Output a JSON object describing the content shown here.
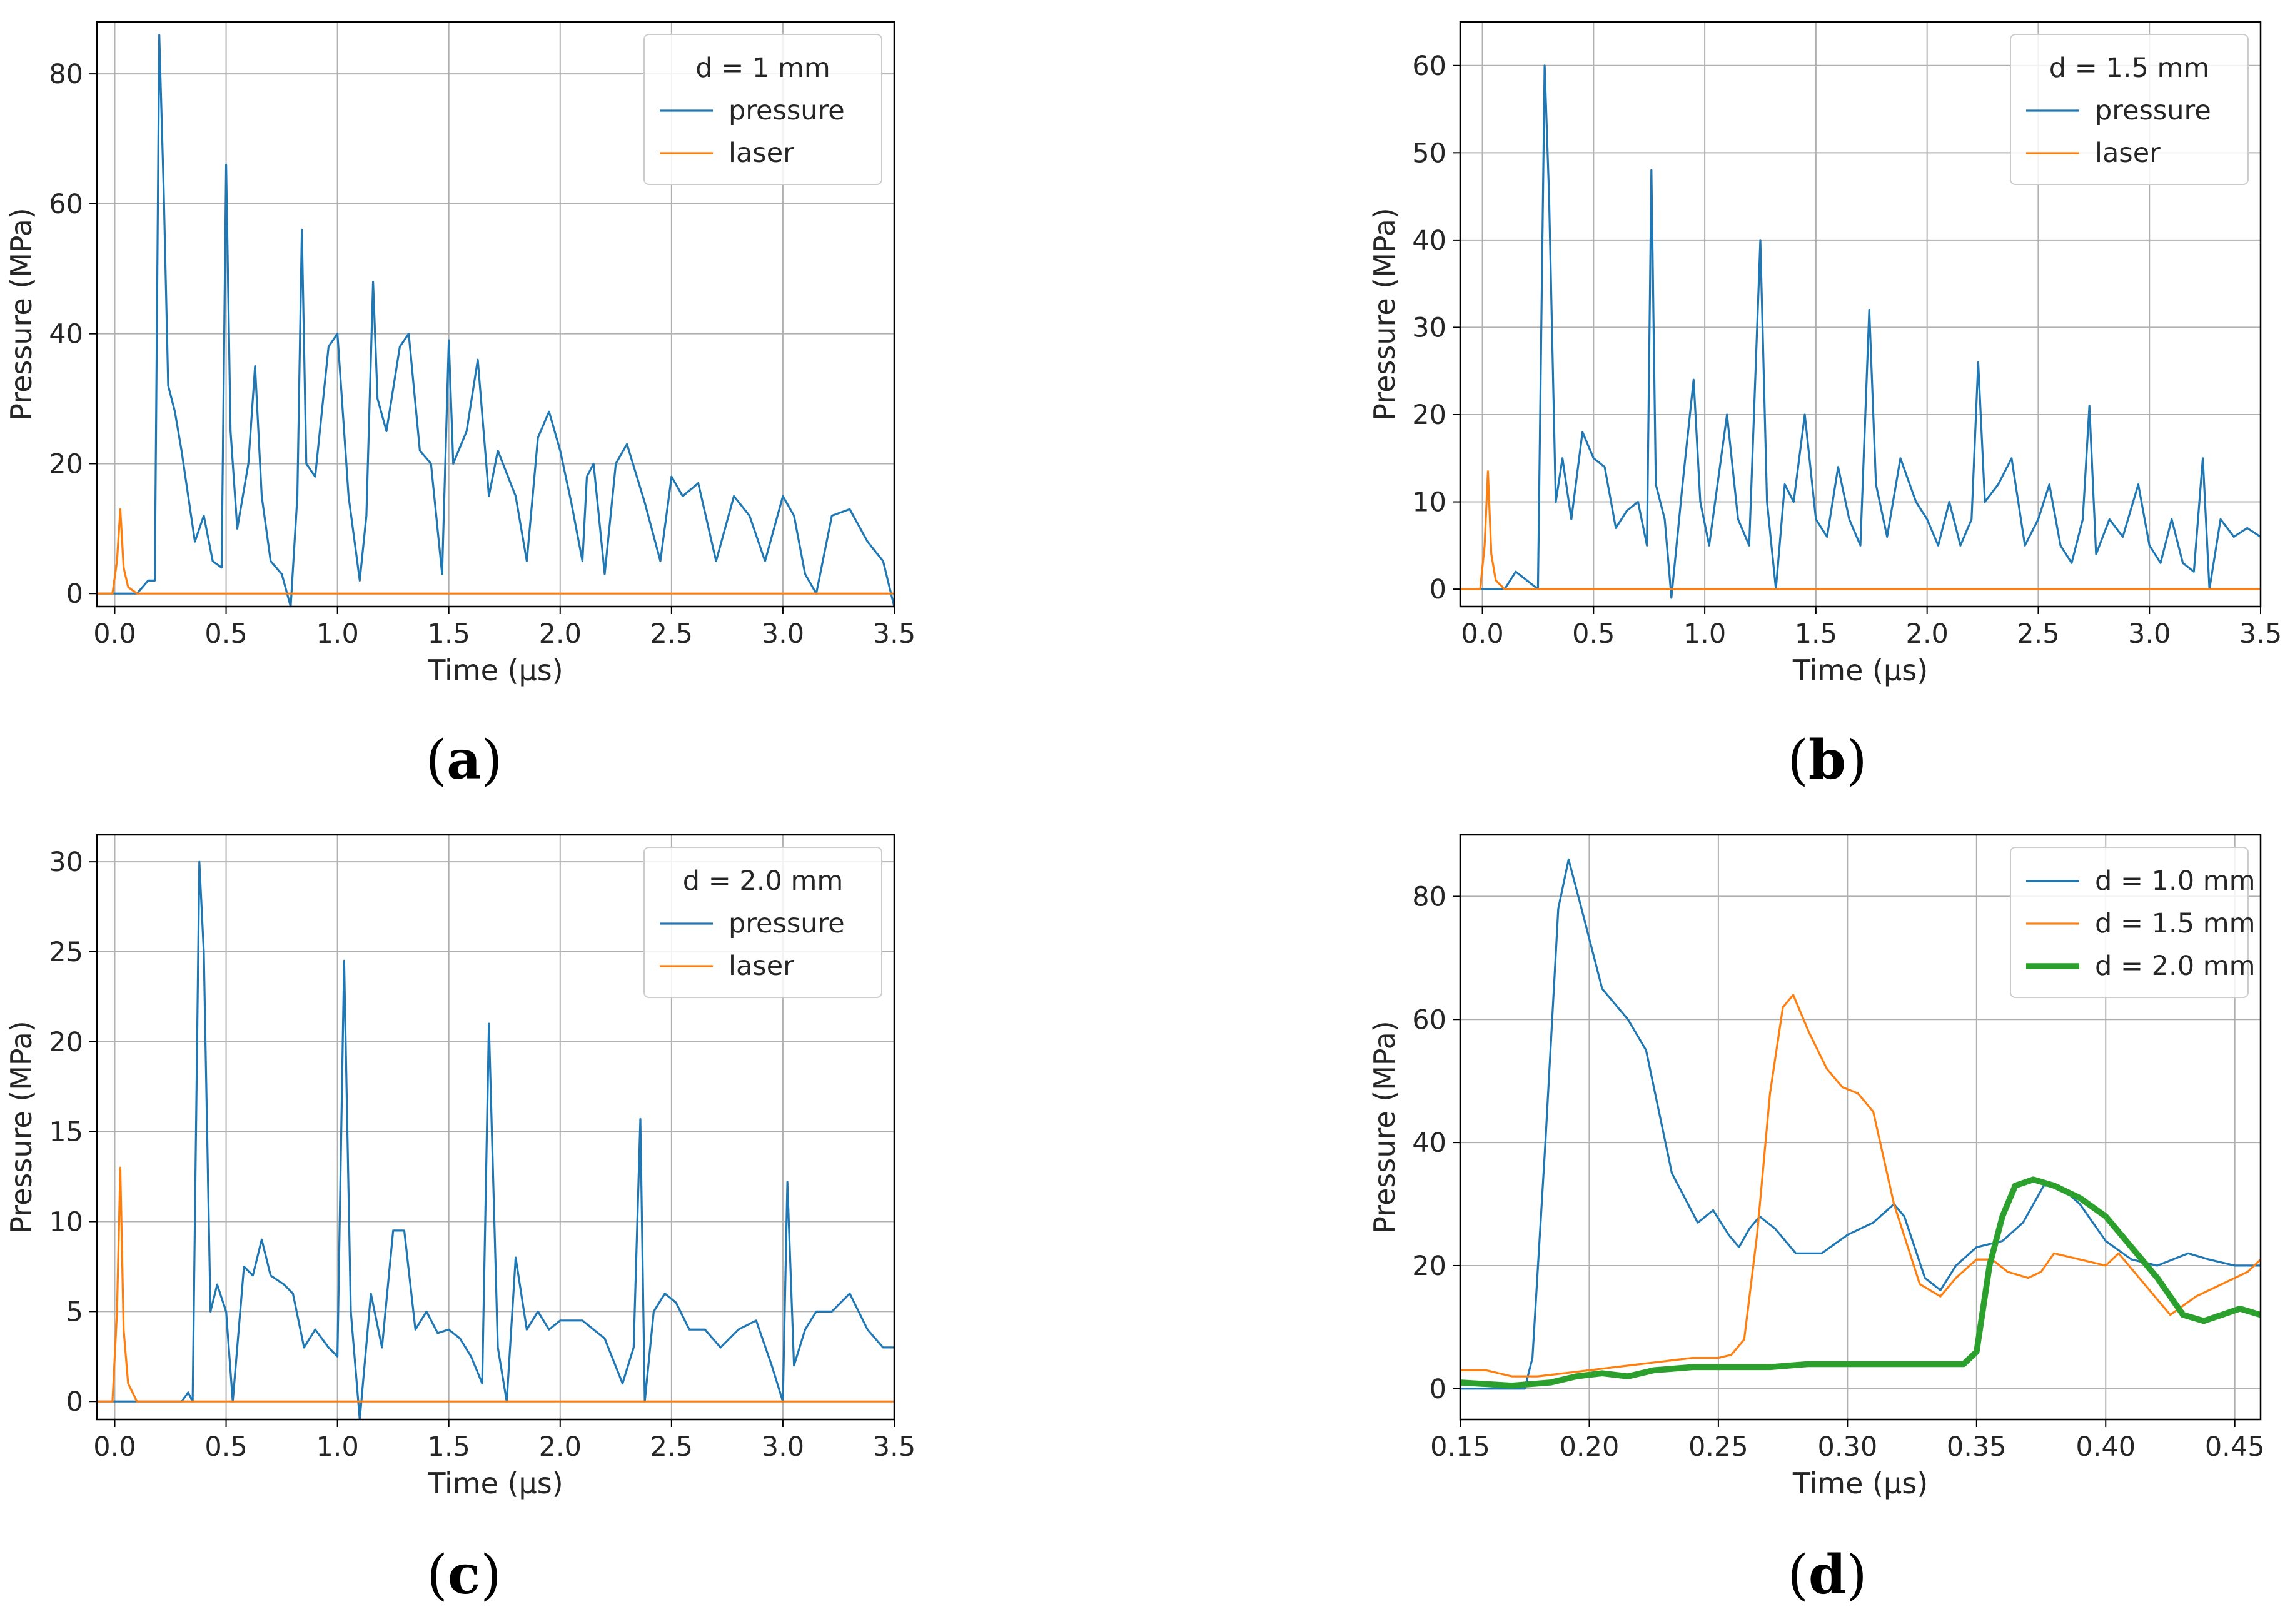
{
  "figure": {
    "panels": [
      {
        "key": "a",
        "label_open": "(",
        "label_letter": "a",
        "label_close": ")"
      },
      {
        "key": "b",
        "label_open": "(",
        "label_letter": "b",
        "label_close": ")"
      },
      {
        "key": "c",
        "label_open": "(",
        "label_letter": "c",
        "label_close": ")"
      },
      {
        "key": "d",
        "label_open": "(",
        "label_letter": "d",
        "label_close": ")"
      }
    ]
  },
  "colors": {
    "pressure": "#1f77b4",
    "laser": "#ff7f0e",
    "green": "#2ca02c"
  },
  "chart_data": [
    {
      "id": "a",
      "type": "line",
      "xlabel": "Time (μs)",
      "ylabel": "Pressure (MPa)",
      "xlim": [
        -0.08,
        3.5
      ],
      "ylim": [
        -2,
        88
      ],
      "xticks": [
        0.0,
        0.5,
        1.0,
        1.5,
        2.0,
        2.5,
        3.0,
        3.5
      ],
      "xtick_labels": [
        "0.0",
        "0.5",
        "1.0",
        "1.5",
        "2.0",
        "2.5",
        "3.0",
        "3.5"
      ],
      "yticks": [
        0,
        20,
        40,
        60,
        80
      ],
      "ytick_labels": [
        "0",
        "20",
        "40",
        "60",
        "80"
      ],
      "grid": true,
      "legend": {
        "position": "top-right",
        "title": "d = 1 mm"
      },
      "series": [
        {
          "name": "pressure",
          "color": "#1f77b4",
          "x": [
            -0.08,
            0.1,
            0.15,
            0.18,
            0.2,
            0.22,
            0.24,
            0.27,
            0.3,
            0.33,
            0.36,
            0.4,
            0.44,
            0.48,
            0.5,
            0.52,
            0.55,
            0.6,
            0.63,
            0.66,
            0.7,
            0.75,
            0.79,
            0.82,
            0.84,
            0.86,
            0.9,
            0.96,
            1.0,
            1.05,
            1.1,
            1.13,
            1.16,
            1.18,
            1.22,
            1.28,
            1.32,
            1.37,
            1.42,
            1.47,
            1.5,
            1.52,
            1.58,
            1.63,
            1.68,
            1.72,
            1.8,
            1.85,
            1.9,
            1.95,
            2.0,
            2.05,
            2.1,
            2.12,
            2.15,
            2.2,
            2.25,
            2.3,
            2.38,
            2.45,
            2.5,
            2.55,
            2.62,
            2.7,
            2.78,
            2.85,
            2.92,
            3.0,
            3.05,
            3.1,
            3.15,
            3.22,
            3.3,
            3.38,
            3.45,
            3.5
          ],
          "y": [
            0,
            0,
            2,
            2,
            86,
            62,
            32,
            28,
            22,
            15,
            8,
            12,
            5,
            4,
            66,
            25,
            10,
            20,
            35,
            15,
            5,
            3,
            -2,
            15,
            56,
            20,
            18,
            38,
            40,
            15,
            2,
            12,
            48,
            30,
            25,
            38,
            40,
            22,
            20,
            3,
            39,
            20,
            25,
            36,
            15,
            22,
            15,
            5,
            24,
            28,
            22,
            14,
            5,
            18,
            20,
            3,
            20,
            23,
            14,
            5,
            18,
            15,
            17,
            5,
            15,
            12,
            5,
            15,
            12,
            3,
            0,
            12,
            13,
            8,
            5,
            -2
          ]
        },
        {
          "name": "laser",
          "color": "#ff7f0e",
          "x": [
            -0.08,
            -0.01,
            0.01,
            0.025,
            0.04,
            0.06,
            0.1,
            3.5
          ],
          "y": [
            0,
            0,
            5,
            13,
            4,
            1,
            0,
            0
          ]
        }
      ]
    },
    {
      "id": "b",
      "type": "line",
      "xlabel": "Time (μs)",
      "ylabel": "Pressure (MPa)",
      "xlim": [
        -0.1,
        3.5
      ],
      "ylim": [
        -2,
        65
      ],
      "xticks": [
        0.0,
        0.5,
        1.0,
        1.5,
        2.0,
        2.5,
        3.0,
        3.5
      ],
      "xtick_labels": [
        "0.0",
        "0.5",
        "1.0",
        "1.5",
        "2.0",
        "2.5",
        "3.0",
        "3.5"
      ],
      "yticks": [
        0,
        10,
        20,
        30,
        40,
        50,
        60
      ],
      "ytick_labels": [
        "0",
        "10",
        "20",
        "30",
        "40",
        "50",
        "60"
      ],
      "grid": true,
      "legend": {
        "position": "top-right",
        "title": "d = 1.5 mm"
      },
      "series": [
        {
          "name": "pressure",
          "color": "#1f77b4",
          "x": [
            -0.1,
            0.1,
            0.15,
            0.2,
            0.25,
            0.28,
            0.3,
            0.33,
            0.36,
            0.4,
            0.45,
            0.5,
            0.55,
            0.6,
            0.65,
            0.7,
            0.74,
            0.76,
            0.78,
            0.82,
            0.85,
            0.9,
            0.95,
            0.98,
            1.02,
            1.1,
            1.15,
            1.2,
            1.25,
            1.28,
            1.32,
            1.36,
            1.4,
            1.45,
            1.5,
            1.55,
            1.6,
            1.65,
            1.7,
            1.74,
            1.77,
            1.82,
            1.88,
            1.95,
            2.0,
            2.05,
            2.1,
            2.15,
            2.2,
            2.23,
            2.26,
            2.32,
            2.38,
            2.44,
            2.5,
            2.55,
            2.6,
            2.65,
            2.7,
            2.73,
            2.76,
            2.82,
            2.88,
            2.95,
            3.0,
            3.05,
            3.1,
            3.15,
            3.2,
            3.24,
            3.27,
            3.32,
            3.38,
            3.44,
            3.5
          ],
          "y": [
            0,
            0,
            2,
            1,
            0,
            60,
            45,
            10,
            15,
            8,
            18,
            15,
            14,
            7,
            9,
            10,
            5,
            48,
            12,
            8,
            -1,
            12,
            24,
            10,
            5,
            20,
            8,
            5,
            40,
            10,
            0,
            12,
            10,
            20,
            8,
            6,
            14,
            8,
            5,
            32,
            12,
            6,
            15,
            10,
            8,
            5,
            10,
            5,
            8,
            26,
            10,
            12,
            15,
            5,
            8,
            12,
            5,
            3,
            8,
            21,
            4,
            8,
            6,
            12,
            5,
            3,
            8,
            3,
            2,
            15,
            0,
            8,
            6,
            7,
            6
          ]
        },
        {
          "name": "laser",
          "color": "#ff7f0e",
          "x": [
            -0.1,
            -0.01,
            0.01,
            0.025,
            0.04,
            0.06,
            0.1,
            3.5
          ],
          "y": [
            0,
            0,
            5,
            13.5,
            4,
            1,
            0,
            0
          ]
        }
      ]
    },
    {
      "id": "c",
      "type": "line",
      "xlabel": "Time (μs)",
      "ylabel": "Pressure (MPa)",
      "xlim": [
        -0.08,
        3.5
      ],
      "ylim": [
        -1,
        31.5
      ],
      "xticks": [
        0.0,
        0.5,
        1.0,
        1.5,
        2.0,
        2.5,
        3.0,
        3.5
      ],
      "xtick_labels": [
        "0.0",
        "0.5",
        "1.0",
        "1.5",
        "2.0",
        "2.5",
        "3.0",
        "3.5"
      ],
      "yticks": [
        0,
        5,
        10,
        15,
        20,
        25,
        30
      ],
      "ytick_labels": [
        "0",
        "5",
        "10",
        "15",
        "20",
        "25",
        "30"
      ],
      "grid": true,
      "legend": {
        "position": "top-right",
        "title": "d = 2.0 mm"
      },
      "series": [
        {
          "name": "pressure",
          "color": "#1f77b4",
          "x": [
            -0.08,
            0.2,
            0.3,
            0.33,
            0.35,
            0.38,
            0.4,
            0.43,
            0.46,
            0.5,
            0.53,
            0.58,
            0.62,
            0.66,
            0.7,
            0.76,
            0.8,
            0.85,
            0.9,
            0.96,
            1.0,
            1.03,
            1.06,
            1.1,
            1.15,
            1.2,
            1.25,
            1.3,
            1.35,
            1.4,
            1.45,
            1.5,
            1.55,
            1.6,
            1.65,
            1.68,
            1.72,
            1.76,
            1.8,
            1.85,
            1.9,
            1.95,
            2.0,
            2.1,
            2.2,
            2.28,
            2.33,
            2.36,
            2.38,
            2.42,
            2.47,
            2.52,
            2.58,
            2.65,
            2.72,
            2.8,
            2.88,
            2.95,
            3.0,
            3.02,
            3.05,
            3.1,
            3.15,
            3.22,
            3.3,
            3.38,
            3.45,
            3.5
          ],
          "y": [
            0,
            0,
            0,
            0.5,
            0,
            30,
            25,
            5,
            6.5,
            5,
            0,
            7.5,
            7,
            9,
            7,
            6.5,
            6,
            3,
            4,
            3,
            2.5,
            24.5,
            5,
            -1,
            6,
            3,
            9.5,
            9.5,
            4,
            5,
            3.8,
            4,
            3.5,
            2.5,
            1,
            21,
            3,
            0,
            8,
            4,
            5,
            4,
            4.5,
            4.5,
            3.5,
            1,
            3,
            15.7,
            0,
            5,
            6,
            5.5,
            4,
            4,
            3,
            4,
            4.5,
            2,
            0,
            12.2,
            2,
            4,
            5,
            5,
            6,
            4,
            3,
            3
          ]
        },
        {
          "name": "laser",
          "color": "#ff7f0e",
          "x": [
            -0.08,
            -0.01,
            0.01,
            0.025,
            0.04,
            0.06,
            0.1,
            3.5
          ],
          "y": [
            0,
            0,
            5,
            13,
            4,
            1,
            0,
            0
          ]
        }
      ]
    },
    {
      "id": "d",
      "type": "line",
      "xlabel": "Time (μs)",
      "ylabel": "Pressure (MPa)",
      "xlim": [
        0.15,
        0.46
      ],
      "ylim": [
        -5,
        90
      ],
      "xticks": [
        0.15,
        0.2,
        0.25,
        0.3,
        0.35,
        0.4,
        0.45
      ],
      "xtick_labels": [
        "0.15",
        "0.20",
        "0.25",
        "0.30",
        "0.35",
        "0.40",
        "0.45"
      ],
      "yticks": [
        0,
        20,
        40,
        60,
        80
      ],
      "ytick_labels": [
        "0",
        "20",
        "40",
        "60",
        "80"
      ],
      "grid": true,
      "legend": {
        "position": "top-right",
        "title": ""
      },
      "series": [
        {
          "name": "d = 1.0 mm",
          "color": "#1f77b4",
          "width": 1,
          "x": [
            0.15,
            0.175,
            0.178,
            0.183,
            0.188,
            0.192,
            0.197,
            0.205,
            0.215,
            0.222,
            0.232,
            0.242,
            0.248,
            0.254,
            0.258,
            0.262,
            0.266,
            0.272,
            0.28,
            0.29,
            0.3,
            0.31,
            0.318,
            0.322,
            0.33,
            0.336,
            0.342,
            0.35,
            0.36,
            0.368,
            0.376,
            0.382,
            0.39,
            0.4,
            0.41,
            0.42,
            0.432,
            0.44,
            0.45,
            0.46
          ],
          "y": [
            0,
            0,
            5,
            40,
            78,
            86,
            78,
            65,
            60,
            55,
            35,
            27,
            29,
            25,
            23,
            26,
            28,
            26,
            22,
            22,
            25,
            27,
            30,
            28,
            18,
            16,
            20,
            23,
            24,
            27,
            33,
            33,
            30,
            24,
            21,
            20,
            22,
            21,
            20,
            20
          ]
        },
        {
          "name": "d = 1.5 mm",
          "color": "#ff7f0e",
          "width": 1,
          "x": [
            0.15,
            0.16,
            0.17,
            0.18,
            0.2,
            0.22,
            0.24,
            0.25,
            0.255,
            0.26,
            0.265,
            0.27,
            0.275,
            0.279,
            0.285,
            0.292,
            0.298,
            0.304,
            0.31,
            0.318,
            0.328,
            0.336,
            0.342,
            0.35,
            0.356,
            0.362,
            0.37,
            0.375,
            0.38,
            0.39,
            0.4,
            0.405,
            0.415,
            0.425,
            0.435,
            0.445,
            0.455,
            0.46
          ],
          "y": [
            3,
            3,
            2,
            2,
            3,
            4,
            5,
            5,
            5.5,
            8,
            25,
            48,
            62,
            64,
            58,
            52,
            49,
            48,
            45,
            30,
            17,
            15,
            18,
            21,
            21,
            19,
            18,
            19,
            22,
            21,
            20,
            22,
            17,
            12,
            15,
            17,
            19,
            21
          ]
        },
        {
          "name": "d = 2.0 mm",
          "color": "#2ca02c",
          "width": 3,
          "x": [
            0.15,
            0.17,
            0.185,
            0.195,
            0.205,
            0.215,
            0.225,
            0.24,
            0.255,
            0.27,
            0.285,
            0.3,
            0.315,
            0.33,
            0.345,
            0.35,
            0.355,
            0.36,
            0.365,
            0.372,
            0.38,
            0.39,
            0.4,
            0.41,
            0.42,
            0.43,
            0.438,
            0.445,
            0.452,
            0.46
          ],
          "y": [
            1,
            0.5,
            1,
            2,
            2.5,
            2,
            3,
            3.5,
            3.5,
            3.5,
            4,
            4,
            4,
            4,
            4,
            6,
            20,
            28,
            33,
            34,
            33,
            31,
            28,
            23,
            18,
            12,
            11,
            12,
            13,
            12
          ]
        }
      ]
    }
  ]
}
